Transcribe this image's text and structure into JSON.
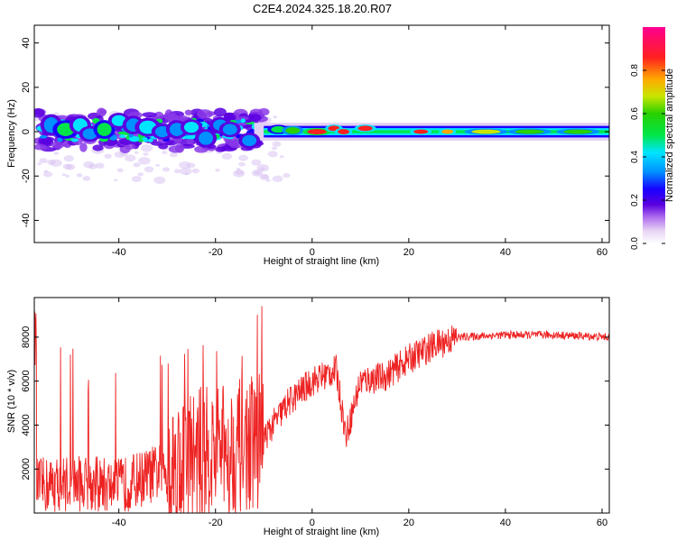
{
  "figure": {
    "title": "C2E4.2024.325.18.20.R07"
  },
  "colors": {
    "snr_line": "#ee2222",
    "colormap": [
      "#e8d6f4",
      "#b070ee",
      "#5a00e0",
      "#1900ff",
      "#0090ff",
      "#00e5ff",
      "#00e64a",
      "#28d000",
      "#c8e600",
      "#ffa800",
      "#ff2020",
      "#ff0090"
    ]
  },
  "chart_data": [
    {
      "type": "heatmap",
      "title": "",
      "xlabel": "Height of straight line (km)",
      "ylabel": "Frequency (Hz)",
      "xlim": [
        -57.5,
        61.5
      ],
      "ylim": [
        -50,
        48
      ],
      "xticks": [
        -40,
        -20,
        0,
        20,
        40,
        60
      ],
      "yticks": [
        -40,
        -20,
        0,
        20,
        40
      ],
      "grid": false,
      "colorbar": {
        "label": "Normalized spectral amplitude",
        "range": [
          0,
          1
        ],
        "ticks": [
          "0.0",
          "0.2",
          "0.4",
          "0.6",
          "0.8"
        ]
      },
      "blobs": [
        {
          "x": -54,
          "y": 3,
          "w": 1.5,
          "h": 3.5,
          "v": 0.4
        },
        {
          "x": -51,
          "y": 1,
          "w": 1.8,
          "h": 3,
          "v": 0.5
        },
        {
          "x": -48,
          "y": 3,
          "w": 1.5,
          "h": 3,
          "v": 0.45
        },
        {
          "x": -46,
          "y": -1,
          "w": 1.5,
          "h": 2.5,
          "v": 0.4
        },
        {
          "x": -43,
          "y": 1,
          "w": 1.5,
          "h": 3,
          "v": 0.5
        },
        {
          "x": -40,
          "y": 5,
          "w": 1.5,
          "h": 2.5,
          "v": 0.45
        },
        {
          "x": -37,
          "y": 3,
          "w": 1.5,
          "h": 3,
          "v": 0.4
        },
        {
          "x": -34,
          "y": 2,
          "w": 1.8,
          "h": 3,
          "v": 0.45
        },
        {
          "x": -31,
          "y": 0,
          "w": 1.5,
          "h": 2.5,
          "v": 0.4
        },
        {
          "x": -28,
          "y": 1,
          "w": 1.5,
          "h": 3,
          "v": 0.4
        },
        {
          "x": -25,
          "y": 2,
          "w": 1.5,
          "h": 2.5,
          "v": 0.45
        },
        {
          "x": -22,
          "y": -3,
          "w": 1.5,
          "h": 3,
          "v": 0.35
        },
        {
          "x": -19,
          "y": 3,
          "w": 1.5,
          "h": 2.5,
          "v": 0.4
        },
        {
          "x": -17,
          "y": 1,
          "w": 1.5,
          "h": 2.5,
          "v": 0.4
        },
        {
          "x": -13,
          "y": -4,
          "w": 1.5,
          "h": 2.5,
          "v": 0.35
        },
        {
          "x": -7,
          "y": 1,
          "w": 1.5,
          "h": 1.5,
          "v": 0.55
        },
        {
          "x": -4,
          "y": 0.5,
          "w": 1.5,
          "h": 1.5,
          "v": 0.6
        },
        {
          "x": 1,
          "y": 0,
          "w": 2,
          "h": 1.2,
          "v": 0.95
        },
        {
          "x": 4.5,
          "y": 1.5,
          "w": 1.2,
          "h": 1.2,
          "v": 0.9
        },
        {
          "x": 6.5,
          "y": 0,
          "w": 1.2,
          "h": 1.2,
          "v": 0.9
        },
        {
          "x": 11,
          "y": 1.5,
          "w": 1.5,
          "h": 1.2,
          "v": 0.9
        },
        {
          "x": 22.5,
          "y": 0,
          "w": 1.5,
          "h": 1,
          "v": 0.9
        },
        {
          "x": 28,
          "y": 0,
          "w": 1.2,
          "h": 1,
          "v": 0.85
        },
        {
          "x": 36,
          "y": 0,
          "w": 3,
          "h": 1,
          "v": 0.7
        },
        {
          "x": 45,
          "y": 0,
          "w": 3,
          "h": 1,
          "v": 0.65
        },
        {
          "x": 55,
          "y": 0,
          "w": 3,
          "h": 1,
          "v": 0.6
        }
      ]
    },
    {
      "type": "line",
      "title": "",
      "xlabel": "Height of straight line (km)",
      "ylabel": "SNR (10 * v/v)",
      "xlim": [
        -57.5,
        61.5
      ],
      "ylim": [
        0,
        9800
      ],
      "xticks": [
        -40,
        -20,
        0,
        20,
        40,
        60
      ],
      "yticks": [
        2000,
        4000,
        6000,
        8000
      ],
      "grid": false,
      "series": [
        {
          "x": [
            -57,
            -50,
            -40,
            -30,
            -25,
            -20,
            -15,
            -10,
            -5,
            0,
            5,
            7,
            10,
            15,
            20,
            25,
            30,
            40,
            50,
            61.5
          ],
          "y": [
            1200,
            1400,
            1200,
            2000,
            2600,
            2800,
            3000,
            3400,
            5000,
            6000,
            6500,
            3500,
            6000,
            6200,
            7000,
            7600,
            8000,
            8100,
            8100,
            8000
          ]
        }
      ]
    }
  ]
}
